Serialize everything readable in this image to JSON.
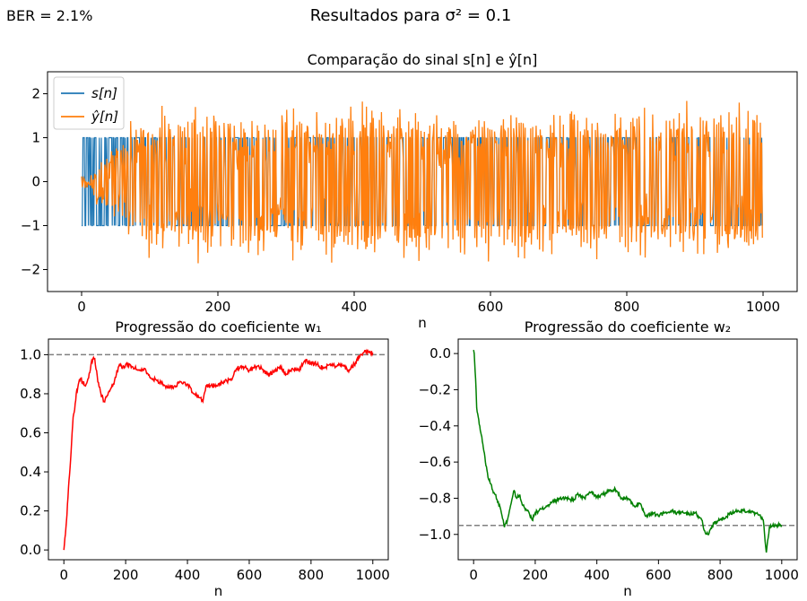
{
  "figure": {
    "suptitle": "Resultados para σ² = 0.1",
    "ber_label": "BER = 2.1%"
  },
  "chart_data": [
    {
      "type": "line",
      "title": "Comparação do sinal s[n] e ŷ[n]",
      "xlabel": "n",
      "ylabel": "",
      "xlim": [
        -50,
        1050
      ],
      "ylim": [
        -2.5,
        2.5
      ],
      "xticks": [
        0,
        200,
        400,
        600,
        800,
        1000
      ],
      "yticks": [
        -2,
        -1,
        0,
        1,
        2
      ],
      "legend_position": "top-left",
      "series": [
        {
          "name": "s[n]",
          "color": "#1f77b4",
          "n_points": 1000,
          "values_set": [
            -1,
            1
          ],
          "description": "binary ±1 symbols"
        },
        {
          "name": "ŷ[n]",
          "color": "#ff7f0e",
          "n_points": 1000,
          "range": [
            -2.25,
            2.38
          ],
          "description": "equalizer output, starts near 0 and grows to ±1 level with noise"
        }
      ],
      "annotations": []
    },
    {
      "type": "line",
      "title": "Progressão do coeficiente w₁",
      "xlabel": "n",
      "xlim": [
        -50,
        1050
      ],
      "ylim": [
        -0.05,
        1.08
      ],
      "xticks": [
        0,
        200,
        400,
        600,
        800,
        1000
      ],
      "yticks": [
        0.0,
        0.2,
        0.4,
        0.6,
        0.8,
        1.0
      ],
      "reference_line": 1.0,
      "series": [
        {
          "name": "w1",
          "color": "#ff0000",
          "x": [
            0,
            5,
            10,
            15,
            20,
            25,
            30,
            35,
            40,
            45,
            50,
            55,
            60,
            70,
            80,
            90,
            100,
            110,
            120,
            130,
            140,
            150,
            160,
            170,
            180,
            190,
            200,
            220,
            240,
            260,
            280,
            300,
            320,
            340,
            360,
            380,
            400,
            420,
            440,
            450,
            460,
            480,
            500,
            520,
            540,
            560,
            580,
            600,
            620,
            640,
            660,
            680,
            700,
            720,
            740,
            760,
            780,
            800,
            820,
            840,
            860,
            880,
            900,
            920,
            940,
            960,
            980,
            1000
          ],
          "values": [
            0.0,
            0.08,
            0.18,
            0.32,
            0.42,
            0.55,
            0.68,
            0.72,
            0.8,
            0.83,
            0.87,
            0.88,
            0.86,
            0.84,
            0.88,
            0.97,
            0.98,
            0.86,
            0.8,
            0.76,
            0.79,
            0.82,
            0.85,
            0.9,
            0.95,
            0.93,
            0.95,
            0.94,
            0.92,
            0.93,
            0.88,
            0.87,
            0.85,
            0.83,
            0.84,
            0.86,
            0.85,
            0.8,
            0.78,
            0.76,
            0.84,
            0.84,
            0.85,
            0.86,
            0.87,
            0.93,
            0.94,
            0.92,
            0.94,
            0.93,
            0.9,
            0.91,
            0.94,
            0.9,
            0.93,
            0.92,
            0.97,
            0.96,
            0.95,
            0.93,
            0.95,
            0.94,
            0.95,
            0.92,
            0.95,
            1.0,
            1.02,
            1.01
          ]
        }
      ]
    },
    {
      "type": "line",
      "title": "Progressão do coeficiente w₂",
      "xlabel": "n",
      "xlim": [
        -50,
        1050
      ],
      "ylim": [
        -1.14,
        0.08
      ],
      "xticks": [
        0,
        200,
        400,
        600,
        800,
        1000
      ],
      "yticks": [
        -1.0,
        -0.8,
        -0.6,
        -0.4,
        -0.2,
        0.0
      ],
      "reference_line": -0.95,
      "series": [
        {
          "name": "w2",
          "color": "#008000",
          "x": [
            0,
            2,
            5,
            8,
            10,
            15,
            20,
            25,
            30,
            35,
            40,
            45,
            50,
            55,
            60,
            70,
            80,
            90,
            100,
            110,
            120,
            130,
            140,
            150,
            160,
            170,
            180,
            190,
            200,
            220,
            240,
            260,
            280,
            300,
            320,
            340,
            360,
            380,
            400,
            420,
            440,
            460,
            480,
            500,
            520,
            540,
            560,
            580,
            600,
            620,
            640,
            660,
            680,
            700,
            720,
            740,
            750,
            760,
            780,
            800,
            820,
            840,
            860,
            880,
            900,
            920,
            940,
            950,
            960,
            980,
            1000
          ],
          "values": [
            0.02,
            0.0,
            -0.1,
            -0.2,
            -0.3,
            -0.35,
            -0.4,
            -0.45,
            -0.5,
            -0.55,
            -0.62,
            -0.66,
            -0.7,
            -0.72,
            -0.75,
            -0.78,
            -0.82,
            -0.88,
            -0.96,
            -0.92,
            -0.84,
            -0.76,
            -0.8,
            -0.78,
            -0.84,
            -0.86,
            -0.88,
            -0.92,
            -0.88,
            -0.86,
            -0.84,
            -0.82,
            -0.8,
            -0.8,
            -0.81,
            -0.78,
            -0.8,
            -0.77,
            -0.79,
            -0.78,
            -0.76,
            -0.75,
            -0.8,
            -0.8,
            -0.84,
            -0.83,
            -0.9,
            -0.88,
            -0.9,
            -0.88,
            -0.87,
            -0.88,
            -0.88,
            -0.89,
            -0.88,
            -0.92,
            -0.98,
            -1.0,
            -0.94,
            -0.92,
            -0.9,
            -0.88,
            -0.87,
            -0.87,
            -0.88,
            -0.88,
            -0.92,
            -1.1,
            -0.96,
            -0.95,
            -0.95
          ]
        }
      ]
    }
  ]
}
